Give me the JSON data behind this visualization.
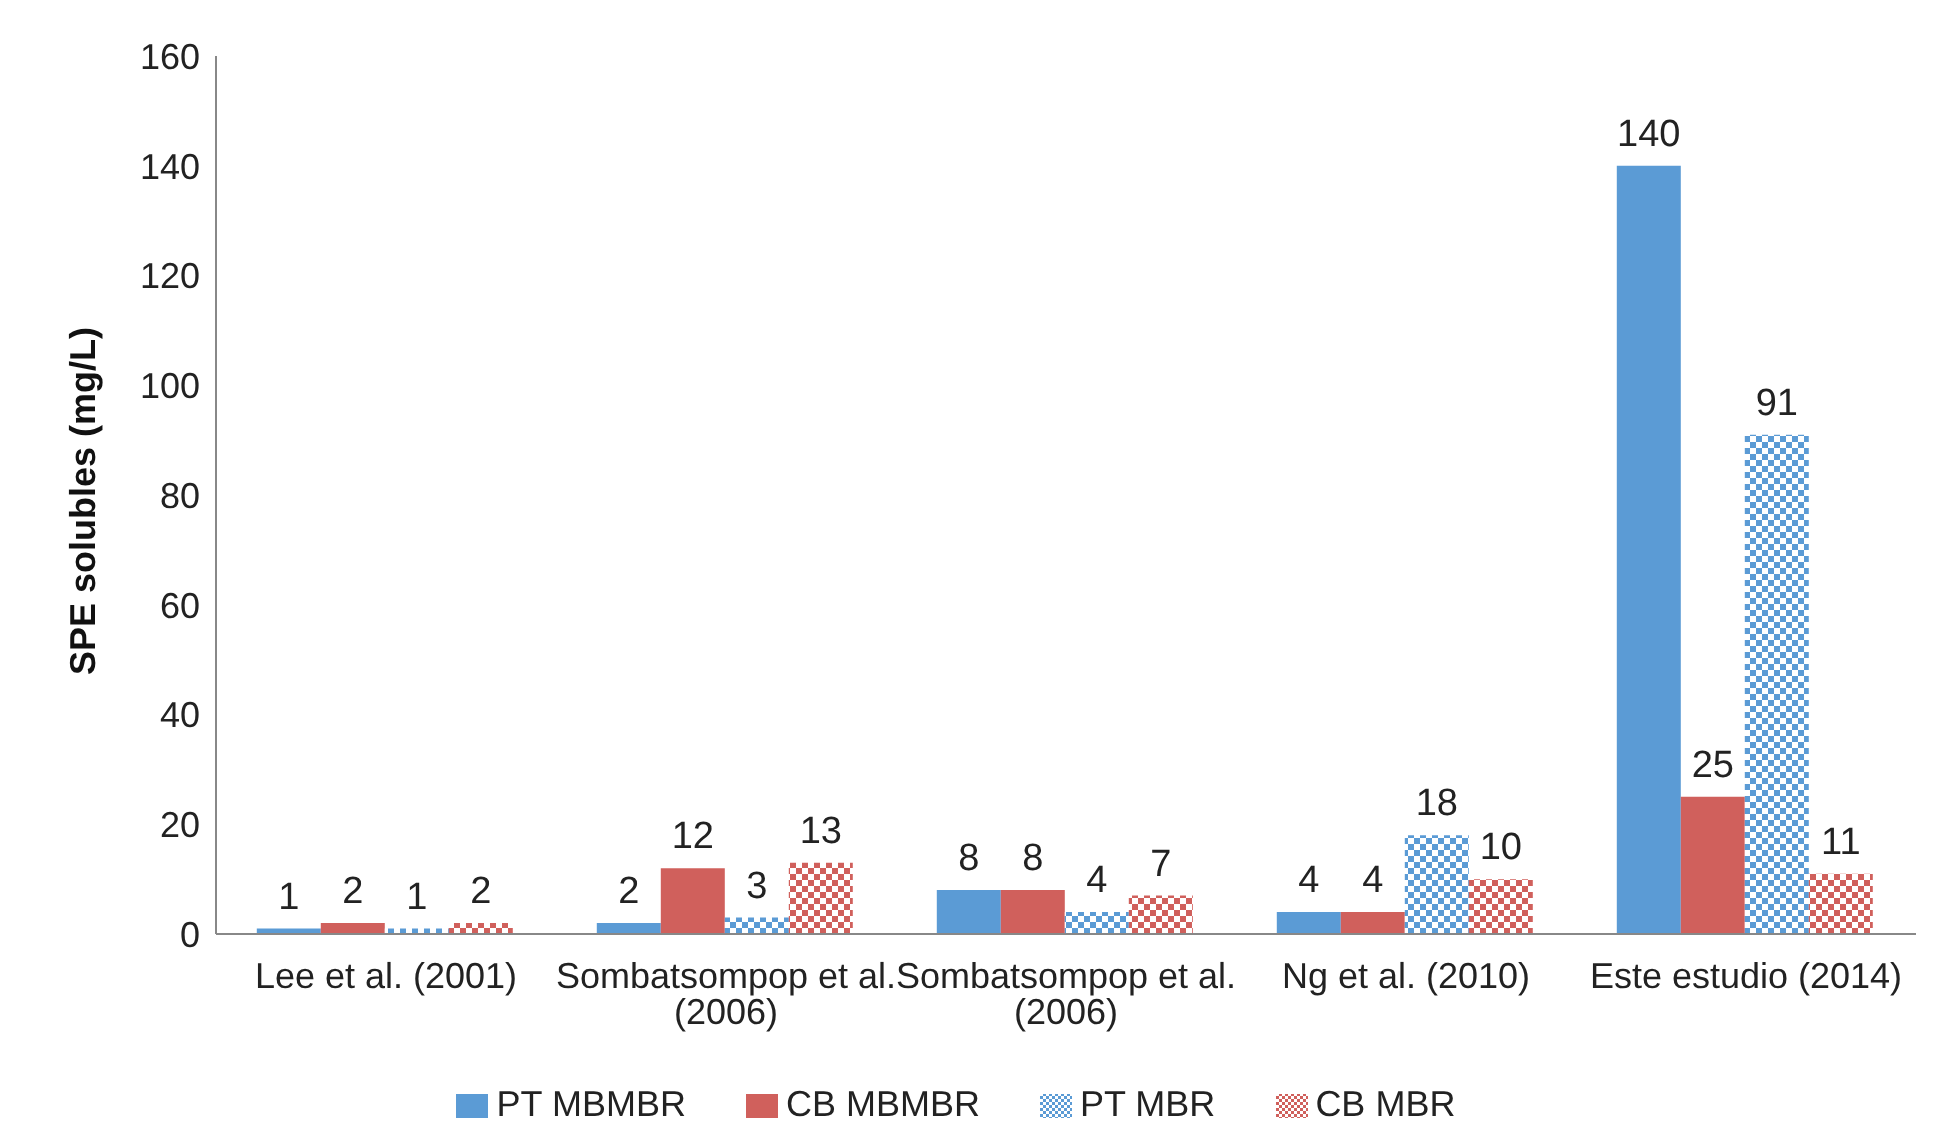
{
  "chart_data": {
    "type": "bar",
    "ylabel": "SPE solubles (mg/L)",
    "categories": [
      "Lee et al. (2001)",
      "Sombatsompop et al. (2006)",
      "Sombatsompop et al. (2006)",
      "Ng et al. (2010)",
      "Este estudio (2014)"
    ],
    "series": [
      {
        "name": "PT MBMBR",
        "color": "#5b9bd5",
        "values": [
          1,
          2,
          8,
          4,
          140
        ]
      },
      {
        "name": "CB MBMBR",
        "color": "#d0605c",
        "values": [
          2,
          12,
          8,
          4,
          25
        ]
      },
      {
        "name": "PT MBR",
        "color": "#5b9bd5",
        "values": [
          1,
          3,
          4,
          18,
          91
        ]
      },
      {
        "name": "CB MBR",
        "color": "#d0605c",
        "values": [
          2,
          13,
          7,
          10,
          11
        ]
      }
    ],
    "ylim": [
      0,
      160
    ],
    "yticks": [
      0,
      20,
      40,
      60,
      80,
      100,
      120,
      140,
      160
    ],
    "grid": false,
    "legend": "bottom",
    "data_labels": true
  }
}
